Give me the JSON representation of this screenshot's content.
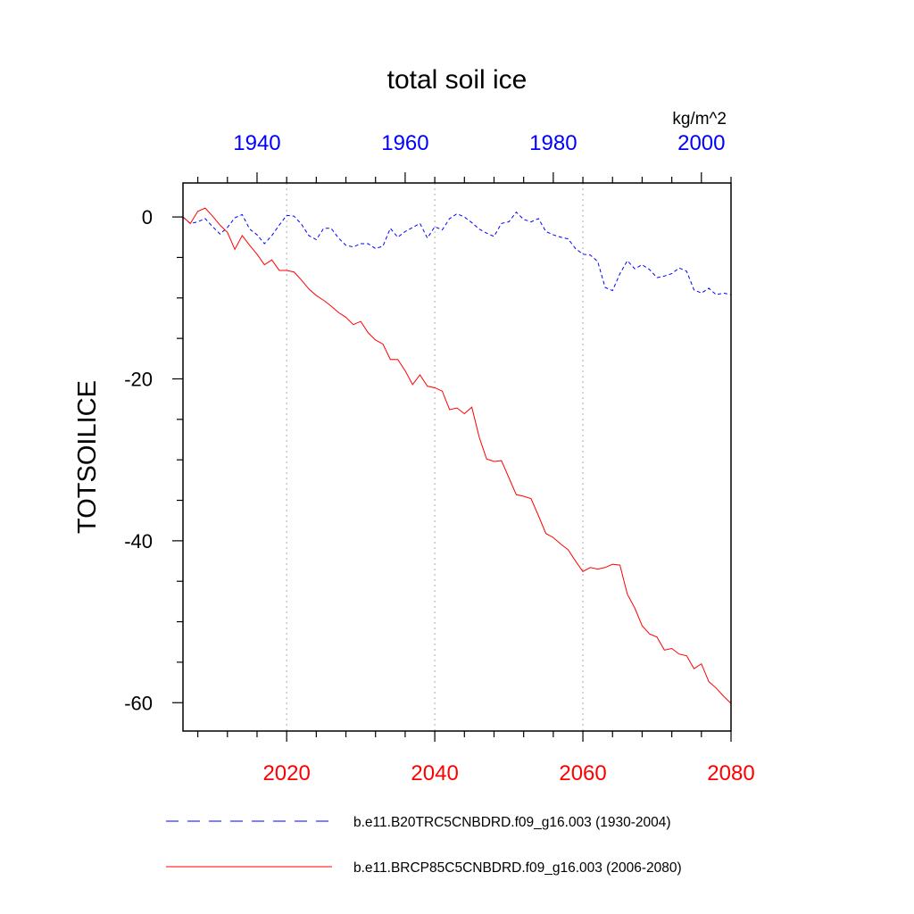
{
  "chart_data": {
    "type": "line",
    "title": "total soil ice",
    "units": "kg/m^2",
    "ylabel": "TOTSOILICE",
    "ylim": [
      -63.5,
      4.2
    ],
    "yticks": [
      0,
      -20,
      -40,
      -60
    ],
    "grid": "dotted vertical lines at bottom-axis major ticks",
    "legend_position": "bottom",
    "colors": {
      "series1": "#0000ff",
      "series2": "#ff0000",
      "top_axis_labels": "#0000ff",
      "bottom_axis_labels": "#ff0000"
    },
    "top_axis": {
      "range": [
        1930,
        2004
      ],
      "ticks": [
        1940,
        1960,
        1980,
        2000
      ]
    },
    "bottom_axis": {
      "range": [
        2006,
        2080
      ],
      "ticks": [
        2020,
        2040,
        2060,
        2080
      ]
    },
    "series": [
      {
        "name": "b.e11.B20TRC5CNBDRD.f09_g16.003 (1930-2004)",
        "style": "dashed",
        "axis": "top",
        "x": [
          1930,
          1931,
          1932,
          1933,
          1934,
          1935,
          1936,
          1937,
          1938,
          1939,
          1940,
          1941,
          1942,
          1943,
          1944,
          1945,
          1946,
          1947,
          1948,
          1949,
          1950,
          1951,
          1952,
          1953,
          1954,
          1955,
          1956,
          1957,
          1958,
          1959,
          1960,
          1961,
          1962,
          1963,
          1964,
          1965,
          1966,
          1967,
          1968,
          1969,
          1970,
          1971,
          1972,
          1973,
          1974,
          1975,
          1976,
          1977,
          1978,
          1979,
          1980,
          1981,
          1982,
          1983,
          1984,
          1985,
          1986,
          1987,
          1988,
          1989,
          1990,
          1991,
          1992,
          1993,
          1994,
          1995,
          1996,
          1997,
          1998,
          1999,
          2000,
          2001,
          2002,
          2003,
          2004
        ],
        "y": [
          0,
          -0.8,
          -0.6,
          -0.2,
          -1.2,
          -2.1,
          -1.3,
          -0.1,
          0.3,
          -1.5,
          -2.2,
          -3.3,
          -2.3,
          -1.0,
          0.2,
          0.1,
          -0.9,
          -2.3,
          -2.8,
          -1.4,
          -1.4,
          -2.6,
          -3.5,
          -3.7,
          -3.3,
          -3.3,
          -3.9,
          -3.6,
          -1.4,
          -2.5,
          -1.8,
          -1.3,
          -0.8,
          -2.6,
          -1.2,
          -1.6,
          -0.2,
          0.4,
          0.0,
          -0.7,
          -1.5,
          -2.0,
          -2.4,
          -0.8,
          -0.6,
          0.6,
          -0.3,
          -0.6,
          -0.2,
          -1.8,
          -2.2,
          -2.5,
          -2.7,
          -3.9,
          -4.6,
          -4.7,
          -5.5,
          -8.7,
          -9.1,
          -7.0,
          -5.4,
          -6.4,
          -5.9,
          -6.5,
          -7.5,
          -7.3,
          -7.0,
          -6.3,
          -6.7,
          -9.0,
          -9.4,
          -8.8,
          -9.6,
          -9.4,
          -9.6
        ]
      },
      {
        "name": "b.e11.BRCP85C5CNBDRD.f09_g16.003 (2006-2080)",
        "style": "solid",
        "axis": "bottom",
        "x": [
          2006,
          2007,
          2008,
          2009,
          2010,
          2011,
          2012,
          2013,
          2014,
          2015,
          2016,
          2017,
          2018,
          2019,
          2020,
          2021,
          2022,
          2023,
          2024,
          2025,
          2026,
          2027,
          2028,
          2029,
          2030,
          2031,
          2032,
          2033,
          2034,
          2035,
          2036,
          2037,
          2038,
          2039,
          2040,
          2041,
          2042,
          2043,
          2044,
          2045,
          2046,
          2047,
          2048,
          2049,
          2050,
          2051,
          2052,
          2053,
          2054,
          2055,
          2056,
          2057,
          2058,
          2059,
          2060,
          2061,
          2062,
          2063,
          2064,
          2065,
          2066,
          2067,
          2068,
          2069,
          2070,
          2071,
          2072,
          2073,
          2074,
          2075,
          2076,
          2077,
          2078,
          2079,
          2080
        ],
        "y": [
          0,
          -0.8,
          0.7,
          1.1,
          0.1,
          -1.0,
          -1.9,
          -4.0,
          -2.3,
          -3.5,
          -4.6,
          -5.9,
          -5.3,
          -6.6,
          -6.6,
          -6.8,
          -7.8,
          -8.9,
          -9.7,
          -10.3,
          -11.0,
          -11.8,
          -12.4,
          -13.3,
          -12.9,
          -14.3,
          -15.2,
          -15.7,
          -17.6,
          -17.6,
          -19.0,
          -20.7,
          -19.5,
          -20.9,
          -21.1,
          -21.5,
          -23.8,
          -23.6,
          -24.3,
          -23.5,
          -27.2,
          -29.9,
          -30.2,
          -30.1,
          -32.2,
          -34.3,
          -34.5,
          -34.8,
          -36.9,
          -39.1,
          -39.6,
          -40.4,
          -41.1,
          -42.5,
          -43.8,
          -43.3,
          -43.5,
          -43.3,
          -42.9,
          -43.0,
          -46.6,
          -48.3,
          -50.5,
          -51.5,
          -51.9,
          -53.5,
          -53.3,
          -54.0,
          -54.2,
          -55.8,
          -55.2,
          -57.4,
          -58.2,
          -59.2,
          -60.1
        ]
      }
    ]
  }
}
